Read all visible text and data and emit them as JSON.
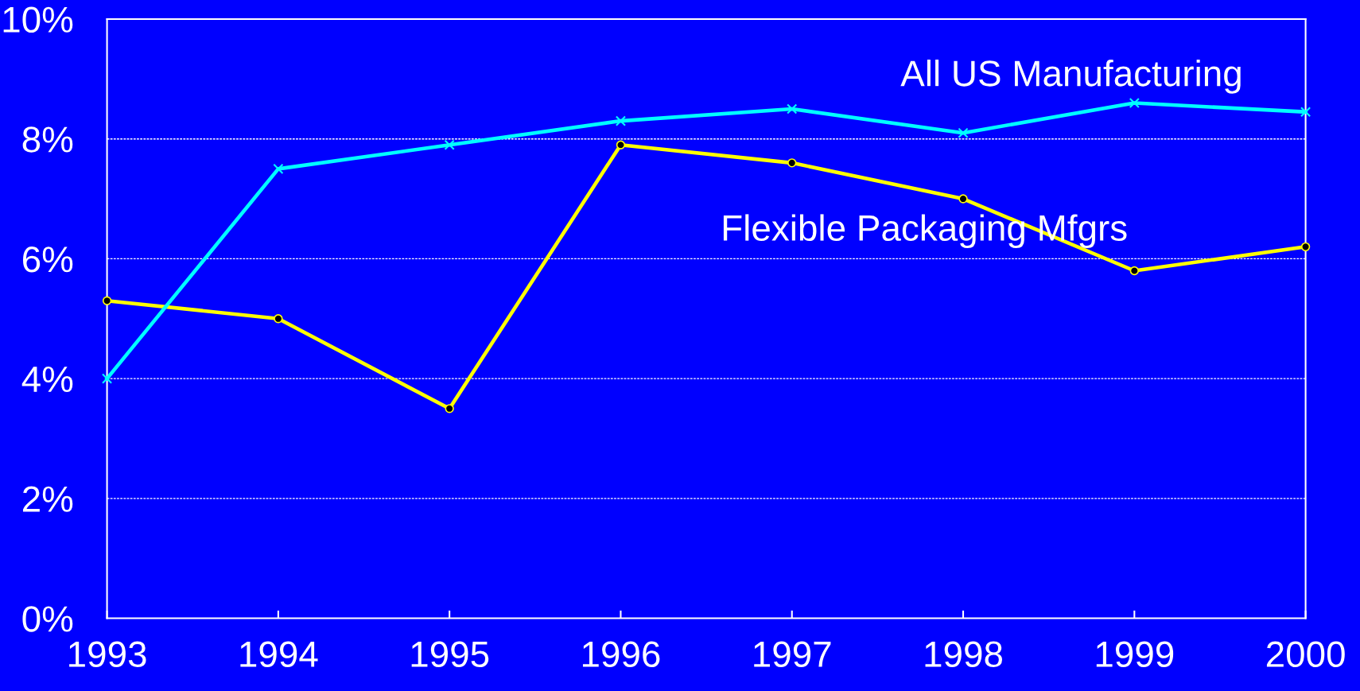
{
  "chart_data": {
    "type": "line",
    "categories": [
      "1993",
      "1994",
      "1995",
      "1996",
      "1997",
      "1998",
      "1999",
      "2000"
    ],
    "series": [
      {
        "name": "Flexible Packaging Mfgrs",
        "color": "#ffff00",
        "marker": "circle",
        "values": [
          5.3,
          5.0,
          3.5,
          7.9,
          7.6,
          7.0,
          5.8,
          6.2
        ]
      },
      {
        "name": "All US Manufacturing",
        "color": "#00ffff",
        "marker": "cross",
        "values": [
          4.0,
          7.5,
          7.9,
          8.3,
          8.5,
          8.1,
          8.6,
          8.45
        ]
      }
    ],
    "ylim": [
      0,
      10
    ],
    "yticks": [
      {
        "value": 0,
        "label": "0%"
      },
      {
        "value": 2,
        "label": "2%"
      },
      {
        "value": 4,
        "label": "4%"
      },
      {
        "value": 6,
        "label": "6%"
      },
      {
        "value": 8,
        "label": "8%"
      },
      {
        "value": 10,
        "label": "10%"
      }
    ],
    "grid": "y",
    "line_style": "solid"
  }
}
